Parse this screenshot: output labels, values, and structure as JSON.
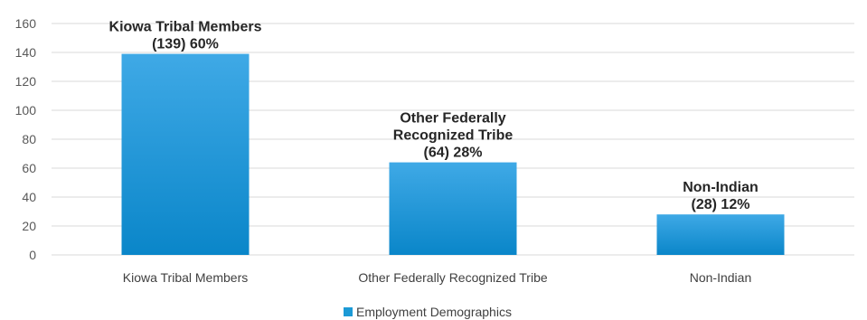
{
  "chart_data": {
    "type": "bar",
    "categories": [
      "Kiowa Tribal Members",
      "Other Federally Recognized Tribe",
      "Non-Indian"
    ],
    "series": [
      {
        "name": "Employment Demographics",
        "values": [
          139,
          64,
          28
        ]
      }
    ],
    "data_labels": [
      [
        "Kiowa  Tribal Members",
        "(139) 60%"
      ],
      [
        "Other Federally",
        "Recognized  Tribe",
        "(64) 28%"
      ],
      [
        "Non-Indian",
        "(28) 12%"
      ]
    ],
    "ylim": [
      0,
      160
    ],
    "yticks": [
      0,
      20,
      40,
      60,
      80,
      100,
      120,
      140,
      160
    ],
    "grid": true,
    "legend": "bottom",
    "colors": {
      "bar_top": "#3fa9e6",
      "bar_bottom": "#0a86c9",
      "grid": "#d9d9d9",
      "legend_swatch": "#1c9ad6"
    }
  }
}
